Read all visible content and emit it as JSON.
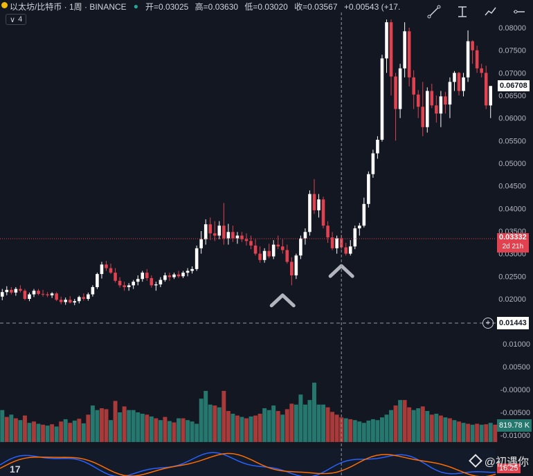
{
  "header": {
    "symbol": "以太坊/比特币 · 1周 · BINANCE",
    "open": "开=0.03025",
    "high": "高=0.03630",
    "low": "低=0.03020",
    "close": "收=0.03567",
    "change": "+0.00543 (+17."
  },
  "level_badge": "4",
  "current_price": "0.06708",
  "crosshair_price": "0.03332",
  "countdown": "2d 21h",
  "lower_price": "0.01443",
  "volume_label": "819.78 K",
  "osc_value": "16.25",
  "watermark": "@初遇你",
  "tv_logo": "17",
  "tools": [
    "line-tool-icon",
    "measure-tool-icon",
    "trend-tool-icon",
    "hline-tool-icon"
  ],
  "colors": {
    "up": "#ffffff",
    "down": "#e0424f",
    "vol_up": "#26786e",
    "vol_down": "#a83a3a",
    "bg": "#131722",
    "crosshair_tag": "#e0424f"
  },
  "chart_data": {
    "type": "candlestick",
    "title": "以太坊/比特币 · 1周 · BINANCE",
    "price_axis": [
      "0.08000",
      "0.07500",
      "0.07000",
      "0.06500",
      "0.06000",
      "0.05500",
      "0.05000",
      "0.04500",
      "0.04000",
      "0.03500",
      "0.03000",
      "0.02500",
      "0.02000"
    ],
    "volume_axis": [
      "0.01000",
      "0.00500",
      "-0.00000",
      "-0.00500",
      "-0.01000"
    ],
    "ylim": [
      0.0165,
      0.0835
    ],
    "volume_ylim": [
      -0.0115,
      0.0125
    ],
    "candles": [
      [
        0.0205,
        0.0222,
        0.0197,
        0.0215
      ],
      [
        0.0215,
        0.0228,
        0.0208,
        0.022
      ],
      [
        0.022,
        0.0226,
        0.021,
        0.0214
      ],
      [
        0.0214,
        0.0226,
        0.0207,
        0.0222
      ],
      [
        0.0222,
        0.023,
        0.0214,
        0.0218
      ],
      [
        0.0218,
        0.0222,
        0.0197,
        0.02
      ],
      [
        0.02,
        0.0214,
        0.0195,
        0.021
      ],
      [
        0.021,
        0.0222,
        0.0204,
        0.0218
      ],
      [
        0.0218,
        0.0222,
        0.0208,
        0.0211
      ],
      [
        0.0211,
        0.022,
        0.0205,
        0.021
      ],
      [
        0.021,
        0.0215,
        0.0204,
        0.0208
      ],
      [
        0.0208,
        0.0215,
        0.0202,
        0.0212
      ],
      [
        0.0212,
        0.0215,
        0.0195,
        0.0198
      ],
      [
        0.0198,
        0.0205,
        0.0188,
        0.0193
      ],
      [
        0.0193,
        0.0203,
        0.0187,
        0.0198
      ],
      [
        0.0198,
        0.0206,
        0.019,
        0.0192
      ],
      [
        0.0192,
        0.02,
        0.0186,
        0.0195
      ],
      [
        0.0195,
        0.0207,
        0.019,
        0.0204
      ],
      [
        0.0204,
        0.0212,
        0.0196,
        0.02
      ],
      [
        0.02,
        0.0214,
        0.0196,
        0.021
      ],
      [
        0.021,
        0.023,
        0.0205,
        0.0226
      ],
      [
        0.0226,
        0.0258,
        0.0222,
        0.0255
      ],
      [
        0.0255,
        0.0282,
        0.0245,
        0.0276
      ],
      [
        0.0276,
        0.0284,
        0.0262,
        0.0268
      ],
      [
        0.0268,
        0.0278,
        0.0255,
        0.0258
      ],
      [
        0.0258,
        0.0268,
        0.0236,
        0.024
      ],
      [
        0.024,
        0.0248,
        0.0225,
        0.023
      ],
      [
        0.023,
        0.0238,
        0.0218,
        0.0226
      ],
      [
        0.0226,
        0.0235,
        0.0218,
        0.023
      ],
      [
        0.023,
        0.0242,
        0.0222,
        0.0238
      ],
      [
        0.0238,
        0.0252,
        0.023,
        0.0244
      ],
      [
        0.0244,
        0.0262,
        0.0238,
        0.0258
      ],
      [
        0.0258,
        0.0266,
        0.024,
        0.0246
      ],
      [
        0.0246,
        0.0252,
        0.0225,
        0.023
      ],
      [
        0.023,
        0.0238,
        0.0218,
        0.0232
      ],
      [
        0.0232,
        0.0248,
        0.0226,
        0.0242
      ],
      [
        0.0242,
        0.0258,
        0.0238,
        0.0252
      ],
      [
        0.0252,
        0.0258,
        0.024,
        0.0248
      ],
      [
        0.0248,
        0.0258,
        0.0244,
        0.0254
      ],
      [
        0.0254,
        0.0262,
        0.0246,
        0.025
      ],
      [
        0.025,
        0.0262,
        0.0246,
        0.0258
      ],
      [
        0.0258,
        0.0268,
        0.025,
        0.0262
      ],
      [
        0.0262,
        0.0272,
        0.0256,
        0.0266
      ],
      [
        0.0266,
        0.0318,
        0.0262,
        0.0312
      ],
      [
        0.0312,
        0.035,
        0.03,
        0.0332
      ],
      [
        0.0332,
        0.0376,
        0.032,
        0.0365
      ],
      [
        0.0365,
        0.038,
        0.033,
        0.0345
      ],
      [
        0.0345,
        0.0372,
        0.0328,
        0.034
      ],
      [
        0.034,
        0.0372,
        0.0332,
        0.0362
      ],
      [
        0.0362,
        0.0412,
        0.032,
        0.0334
      ],
      [
        0.0334,
        0.0366,
        0.032,
        0.0348
      ],
      [
        0.0348,
        0.0362,
        0.0326,
        0.0334
      ],
      [
        0.0334,
        0.0348,
        0.0322,
        0.034
      ],
      [
        0.034,
        0.0348,
        0.0326,
        0.0332
      ],
      [
        0.0332,
        0.0345,
        0.0318,
        0.0328
      ],
      [
        0.0328,
        0.034,
        0.031,
        0.0318
      ],
      [
        0.0318,
        0.0332,
        0.0296,
        0.03
      ],
      [
        0.03,
        0.0316,
        0.028,
        0.0286
      ],
      [
        0.0286,
        0.0312,
        0.028,
        0.0306
      ],
      [
        0.0306,
        0.0322,
        0.029,
        0.0294
      ],
      [
        0.0294,
        0.033,
        0.0288,
        0.032
      ],
      [
        0.032,
        0.034,
        0.031,
        0.0316
      ],
      [
        0.0316,
        0.0332,
        0.03,
        0.0308
      ],
      [
        0.0308,
        0.032,
        0.0278,
        0.0282
      ],
      [
        0.0282,
        0.0292,
        0.023,
        0.0252
      ],
      [
        0.0252,
        0.03,
        0.0244,
        0.0296
      ],
      [
        0.0296,
        0.034,
        0.0288,
        0.0334
      ],
      [
        0.0334,
        0.0356,
        0.032,
        0.0348
      ],
      [
        0.0348,
        0.044,
        0.034,
        0.0432
      ],
      [
        0.0432,
        0.0465,
        0.0388,
        0.0396
      ],
      [
        0.0396,
        0.0432,
        0.038,
        0.042
      ],
      [
        0.042,
        0.0426,
        0.0356,
        0.0362
      ],
      [
        0.0362,
        0.0372,
        0.0324,
        0.0336
      ],
      [
        0.0336,
        0.0348,
        0.0308,
        0.0312
      ],
      [
        0.0312,
        0.034,
        0.03,
        0.0334
      ],
      [
        0.0334,
        0.0342,
        0.031,
        0.0314
      ],
      [
        0.0314,
        0.0324,
        0.0296,
        0.03
      ],
      [
        0.03,
        0.033,
        0.0296,
        0.0316
      ],
      [
        0.0316,
        0.0362,
        0.031,
        0.0356
      ],
      [
        0.0356,
        0.0368,
        0.034,
        0.0362
      ],
      [
        0.0362,
        0.0424,
        0.0358,
        0.041
      ],
      [
        0.041,
        0.0482,
        0.0402,
        0.0476
      ],
      [
        0.0476,
        0.053,
        0.0468,
        0.0522
      ],
      [
        0.0522,
        0.056,
        0.051,
        0.0552
      ],
      [
        0.0552,
        0.074,
        0.0548,
        0.0732
      ],
      [
        0.0732,
        0.0818,
        0.07,
        0.0812
      ],
      [
        0.0812,
        0.0818,
        0.065,
        0.0692
      ],
      [
        0.0692,
        0.07,
        0.055,
        0.062
      ],
      [
        0.062,
        0.072,
        0.06,
        0.071
      ],
      [
        0.071,
        0.0812,
        0.069,
        0.0792
      ],
      [
        0.0792,
        0.08,
        0.067,
        0.069
      ],
      [
        0.069,
        0.0706,
        0.062,
        0.0652
      ],
      [
        0.0652,
        0.0662,
        0.06,
        0.0625
      ],
      [
        0.0625,
        0.068,
        0.056,
        0.058
      ],
      [
        0.058,
        0.0668,
        0.0568,
        0.066
      ],
      [
        0.066,
        0.0676,
        0.0622,
        0.0628
      ],
      [
        0.0628,
        0.065,
        0.059,
        0.061
      ],
      [
        0.061,
        0.066,
        0.058,
        0.0648
      ],
      [
        0.0648,
        0.0658,
        0.061,
        0.063
      ],
      [
        0.063,
        0.069,
        0.06,
        0.068
      ],
      [
        0.068,
        0.0704,
        0.066,
        0.07
      ],
      [
        0.07,
        0.0702,
        0.065,
        0.066
      ],
      [
        0.066,
        0.07,
        0.0648,
        0.069
      ],
      [
        0.069,
        0.0794,
        0.068,
        0.077
      ],
      [
        0.077,
        0.0772,
        0.072,
        0.075
      ],
      [
        0.075,
        0.076,
        0.07,
        0.071
      ],
      [
        0.071,
        0.072,
        0.069,
        0.07
      ],
      [
        0.07,
        0.0716,
        0.062,
        0.0628
      ],
      [
        0.0628,
        0.0671,
        0.06,
        0.0671
      ]
    ],
    "volume": [
      [
        0.004,
        1
      ],
      [
        0.0025,
        0
      ],
      [
        0.003,
        1
      ],
      [
        0.0022,
        0
      ],
      [
        0.0018,
        1
      ],
      [
        0.0028,
        0
      ],
      [
        0.0012,
        1
      ],
      [
        0.0015,
        0
      ],
      [
        0.001,
        1
      ],
      [
        0.0008,
        0
      ],
      [
        0.0006,
        1
      ],
      [
        0.0009,
        0
      ],
      [
        0.0004,
        1
      ],
      [
        0.0015,
        0
      ],
      [
        0.002,
        1
      ],
      [
        0.0012,
        0
      ],
      [
        0.0017,
        1
      ],
      [
        0.0021,
        0
      ],
      [
        0.0011,
        1
      ],
      [
        0.003,
        0
      ],
      [
        0.005,
        1
      ],
      [
        0.004,
        1
      ],
      [
        0.0044,
        0
      ],
      [
        0.0042,
        0
      ],
      [
        0.0018,
        1
      ],
      [
        0.006,
        0
      ],
      [
        0.0035,
        1
      ],
      [
        0.0048,
        0
      ],
      [
        0.004,
        1
      ],
      [
        0.004,
        1
      ],
      [
        0.0035,
        1
      ],
      [
        0.0032,
        1
      ],
      [
        0.003,
        0
      ],
      [
        0.0026,
        1
      ],
      [
        0.0022,
        0
      ],
      [
        0.0018,
        1
      ],
      [
        0.0025,
        0
      ],
      [
        0.0016,
        1
      ],
      [
        0.0013,
        0
      ],
      [
        0.0022,
        1
      ],
      [
        0.0022,
        0
      ],
      [
        0.0018,
        1
      ],
      [
        0.0015,
        1
      ],
      [
        0.001,
        1
      ],
      [
        0.0065,
        1
      ],
      [
        0.0082,
        1
      ],
      [
        0.0052,
        1
      ],
      [
        0.005,
        0
      ],
      [
        0.0046,
        1
      ],
      [
        0.0082,
        0
      ],
      [
        0.0038,
        0
      ],
      [
        0.0032,
        1
      ],
      [
        0.0028,
        0
      ],
      [
        0.0025,
        1
      ],
      [
        0.0022,
        0
      ],
      [
        0.0026,
        1
      ],
      [
        0.0028,
        0
      ],
      [
        0.0032,
        0
      ],
      [
        0.0044,
        1
      ],
      [
        0.004,
        1
      ],
      [
        0.005,
        1
      ],
      [
        0.0038,
        0
      ],
      [
        0.003,
        1
      ],
      [
        0.0042,
        0
      ],
      [
        0.0054,
        0
      ],
      [
        0.0052,
        1
      ],
      [
        0.0074,
        1
      ],
      [
        0.0052,
        1
      ],
      [
        0.0062,
        1
      ],
      [
        0.01,
        1
      ],
      [
        0.0052,
        1
      ],
      [
        0.0052,
        1
      ],
      [
        0.0046,
        0
      ],
      [
        0.0036,
        0
      ],
      [
        0.003,
        0
      ],
      [
        0.0024,
        0
      ],
      [
        0.0022,
        1
      ],
      [
        0.002,
        0
      ],
      [
        0.0018,
        1
      ],
      [
        0.0015,
        1
      ],
      [
        0.0012,
        1
      ],
      [
        0.0017,
        1
      ],
      [
        0.002,
        1
      ],
      [
        0.0018,
        1
      ],
      [
        0.0024,
        1
      ],
      [
        0.003,
        1
      ],
      [
        0.004,
        1
      ],
      [
        0.005,
        0
      ],
      [
        0.0062,
        1
      ],
      [
        0.0062,
        0
      ],
      [
        0.0046,
        0
      ],
      [
        0.004,
        1
      ],
      [
        0.0044,
        1
      ],
      [
        0.0048,
        0
      ],
      [
        0.0038,
        1
      ],
      [
        0.003,
        0
      ],
      [
        0.0032,
        1
      ],
      [
        0.0028,
        0
      ],
      [
        0.0024,
        1
      ],
      [
        0.0022,
        0
      ],
      [
        0.0018,
        1
      ],
      [
        0.0015,
        0
      ],
      [
        0.0012,
        1
      ],
      [
        0.001,
        0
      ],
      [
        0.0008,
        1
      ],
      [
        0.001,
        0
      ],
      [
        0.0008,
        1
      ],
      [
        0.0009,
        0
      ],
      [
        0.0012,
        1
      ],
      [
        0.0008,
        0
      ]
    ],
    "markers": [
      {
        "index": 62,
        "price": 0.0225
      },
      {
        "index": 75,
        "price": 0.029
      }
    ],
    "crosshair_index": 75,
    "lower_line_price": 0.01443
  }
}
